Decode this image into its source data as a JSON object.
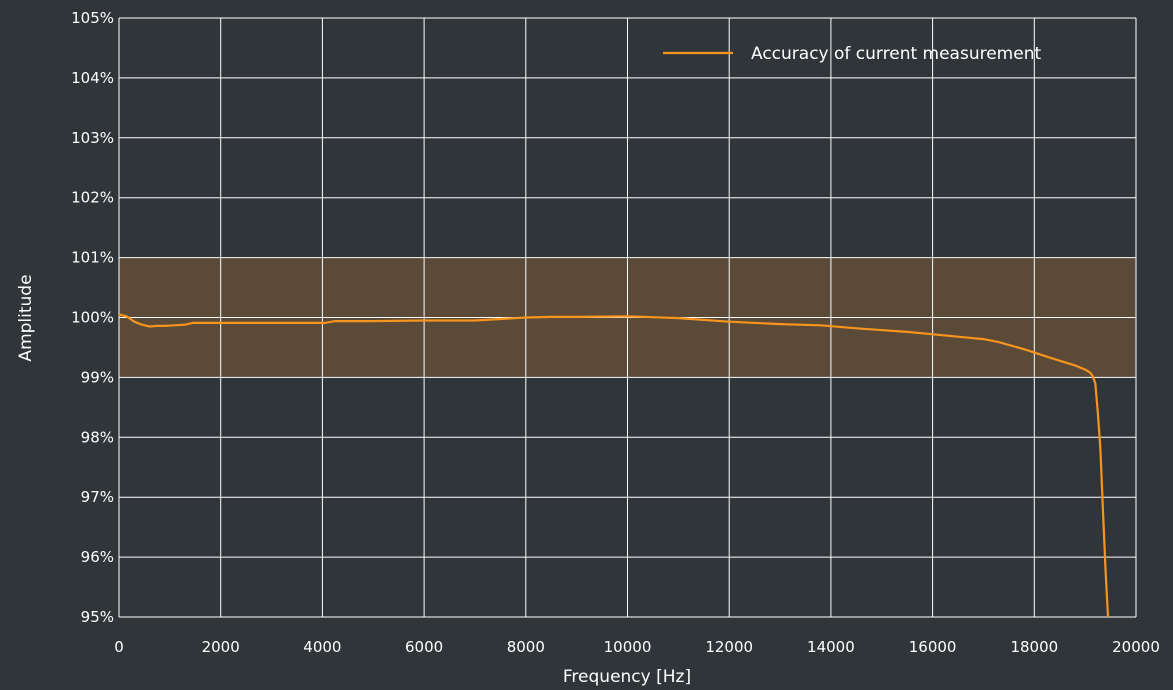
{
  "chart_data": {
    "type": "line",
    "xlabel": "Frequency [Hz]",
    "ylabel": "Amplitude",
    "xlim": [
      0,
      20000
    ],
    "ylim": [
      95,
      105
    ],
    "x_ticks": [
      0,
      2000,
      4000,
      6000,
      8000,
      10000,
      12000,
      14000,
      16000,
      18000,
      20000
    ],
    "x_tick_labels": [
      "0",
      "2000",
      "4000",
      "6000",
      "8000",
      "10000",
      "12000",
      "14000",
      "16000",
      "18000",
      "20000"
    ],
    "y_ticks": [
      95,
      96,
      97,
      98,
      99,
      100,
      101,
      102,
      103,
      104,
      105
    ],
    "y_tick_labels": [
      "95%",
      "96%",
      "97%",
      "98%",
      "99%",
      "100%",
      "101%",
      "102%",
      "103%",
      "104%",
      "105%"
    ],
    "grid": true,
    "legend_position": "top-right",
    "tolerance_band": {
      "y_from": 99,
      "y_to": 101,
      "color": "#5a4a37"
    },
    "series": [
      {
        "name": "Accuracy of current measurement",
        "color": "#f7941d",
        "x": [
          0,
          150,
          300,
          450,
          600,
          750,
          900,
          1100,
          1300,
          1450,
          2000,
          3000,
          4050,
          4250,
          5000,
          6000,
          7000,
          8000,
          8500,
          9000,
          10000,
          11000,
          12000,
          13000,
          13800,
          14500,
          15500,
          16500,
          17000,
          17300,
          17800,
          18300,
          18800,
          19000,
          19100,
          19150,
          19200,
          19250,
          19300,
          19350,
          19400,
          19450
        ],
        "y": [
          100.05,
          100.02,
          99.93,
          99.88,
          99.85,
          99.86,
          99.86,
          99.87,
          99.88,
          99.91,
          99.91,
          99.91,
          99.91,
          99.94,
          99.94,
          99.95,
          99.95,
          100.0,
          100.01,
          100.01,
          100.02,
          99.99,
          99.93,
          99.89,
          99.87,
          99.82,
          99.76,
          99.68,
          99.64,
          99.59,
          99.47,
          99.33,
          99.2,
          99.13,
          99.08,
          99.02,
          98.9,
          98.4,
          97.8,
          96.8,
          95.8,
          95.0
        ]
      }
    ]
  }
}
